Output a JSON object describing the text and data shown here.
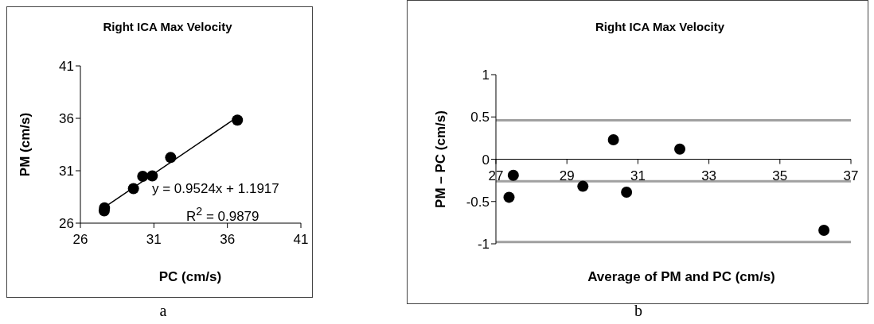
{
  "chart_data": [
    {
      "type": "scatter",
      "title": "Right ICA Max Velocity",
      "xlabel": "PC (cm/s)",
      "ylabel": "PM (cm/s)",
      "xlim": [
        26,
        41
      ],
      "xticks": [
        26,
        31,
        36,
        41
      ],
      "ylim": [
        26,
        41
      ],
      "yticks": [
        26,
        31,
        36,
        41
      ],
      "marker": "circle",
      "series": [
        {
          "color": "#000000",
          "x": [
            27.62,
            27.64,
            29.61,
            30.24,
            30.89,
            32.14,
            36.68
          ],
          "values": [
            27.17,
            27.46,
            29.29,
            30.47,
            30.51,
            32.26,
            35.83
          ]
        },
        {
          "type": "line",
          "marker": "none",
          "color": "#000000",
          "x": [
            27.6,
            36.7
          ],
          "values": [
            27.48,
            36.14
          ]
        }
      ],
      "annotations": [
        "y = 0.9524x + 1.1917",
        "R$^{2}$ = 0.9879",
        "a"
      ]
    },
    {
      "type": "scatter",
      "title": "Right ICA Max Velocity",
      "xlabel": "Average of PM and PC (cm/s)",
      "ylabel": "PM – PC (cm/s)",
      "xlim": [
        27,
        37
      ],
      "xticks": [
        27,
        29,
        31,
        33,
        35,
        37
      ],
      "ylim": [
        -1,
        1
      ],
      "yticks": [
        -1,
        -0.5,
        0,
        0.5,
        1
      ],
      "marker": "circle",
      "series": [
        {
          "color": "#000000",
          "x": [
            27.37,
            27.49,
            29.45,
            30.31,
            30.68,
            32.18,
            36.24
          ],
          "values": [
            -0.45,
            -0.19,
            -0.32,
            0.23,
            -0.39,
            0.12,
            -0.84
          ]
        }
      ],
      "ref_lines": [
        {
          "axis": "y",
          "value": 0.46,
          "color": "#a0a0a0"
        },
        {
          "axis": "y",
          "value": -0.26,
          "color": "#a0a0a0"
        },
        {
          "axis": "y",
          "value": -0.98,
          "color": "#a0a0a0"
        }
      ],
      "annotations": [
        "b"
      ]
    }
  ]
}
